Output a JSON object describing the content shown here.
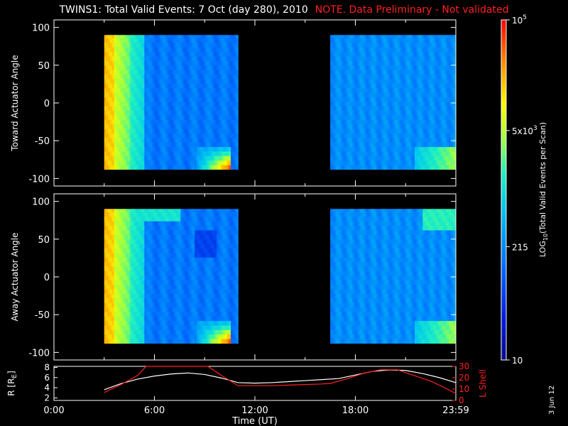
{
  "header": {
    "title": "TWINS1: Total Valid Events:  7 Oct (day 280), 2010",
    "note": "NOTE. Data Preliminary - Not validated"
  },
  "stamp": "3 Jun 12",
  "colors": {
    "background": "#000000",
    "note": "#ff2020",
    "axes": "#ffffff",
    "lshell": "#ff2020",
    "radius": "#ffffff"
  },
  "chart_data": [
    {
      "type": "heatmap",
      "name": "toward-panel",
      "ylabel": "Toward Actuator Angle",
      "xlim": [
        0,
        24
      ],
      "ylim": [
        -110,
        110
      ],
      "y_ticks": [
        "100",
        "50",
        "0",
        "-50",
        "-100"
      ],
      "data_y_range": [
        -88,
        90
      ],
      "data_time_blocks": [
        [
          3.0,
          11.0
        ],
        [
          16.5,
          24.0
        ]
      ]
    },
    {
      "type": "heatmap",
      "name": "away-panel",
      "ylabel": "Away Actuator Angle",
      "xlim": [
        0,
        24
      ],
      "ylim": [
        -110,
        110
      ],
      "y_ticks": [
        "100",
        "50",
        "0",
        "-50",
        "-100"
      ],
      "data_y_range": [
        -88,
        90
      ],
      "data_time_blocks": [
        [
          3.0,
          11.0
        ],
        [
          16.5,
          24.0
        ]
      ]
    },
    {
      "type": "line",
      "name": "orbit-panel",
      "xlabel": "Time (UT)",
      "x_ticks": [
        "0:00",
        "6:00",
        "12:00",
        "18:00",
        "23:59"
      ],
      "ylabel_left": "R [R",
      "ylabel_left_sub": "E",
      "ylabel_left_end": "]",
      "y_left_ticks": [
        "8",
        "6",
        "4",
        "2"
      ],
      "ylim_left": [
        1.5,
        8.2
      ],
      "ylabel_right": "L Shell",
      "y_right_ticks": [
        "30",
        "20",
        "10",
        "0"
      ],
      "ylim_right": [
        0,
        30
      ],
      "series": [
        {
          "name": "R",
          "axis": "left",
          "color": "#ffffff",
          "x": [
            3.0,
            4.0,
            5.0,
            6.0,
            7.0,
            8.0,
            9.0,
            10.0,
            11.0,
            12.0,
            13.0,
            14.0,
            15.0,
            16.0,
            17.0,
            18.0,
            19.0,
            20.0,
            21.0,
            22.0,
            23.0,
            24.0
          ],
          "values": [
            3.6,
            4.8,
            5.7,
            6.3,
            6.7,
            6.9,
            6.6,
            5.9,
            5.0,
            4.9,
            5.0,
            5.2,
            5.4,
            5.6,
            5.8,
            6.5,
            7.2,
            7.5,
            7.4,
            6.8,
            6.0,
            5.0
          ]
        },
        {
          "name": "L Shell",
          "axis": "right",
          "color": "#ff2020",
          "x": [
            3.0,
            4.0,
            5.0,
            5.5,
            9.2,
            10.0,
            11.0,
            12.0,
            13.0,
            14.0,
            15.0,
            16.0,
            16.5,
            17.5,
            18.5,
            19.5,
            20.5,
            21.5,
            22.5,
            23.5,
            24.0
          ],
          "values": [
            7,
            14,
            22,
            30,
            30,
            22,
            13,
            13,
            13,
            13.5,
            14,
            14.5,
            15,
            19,
            24,
            27,
            27,
            22,
            17,
            10,
            6
          ]
        }
      ]
    }
  ],
  "colorbar": {
    "label_main": "LOG",
    "label_sub": "10",
    "label_rest": "(Total Valid  Events per Scan)",
    "ticks": [
      {
        "value": 100000,
        "base": "10",
        "sup": "5",
        "prefix": ""
      },
      {
        "value": 5000,
        "base": "10",
        "sup": "3",
        "prefix": "5x"
      },
      {
        "value": 215,
        "base": "215",
        "sup": "",
        "prefix": ""
      },
      {
        "value": 10,
        "base": "10",
        "sup": "",
        "prefix": ""
      }
    ],
    "range": [
      10,
      100000
    ]
  }
}
